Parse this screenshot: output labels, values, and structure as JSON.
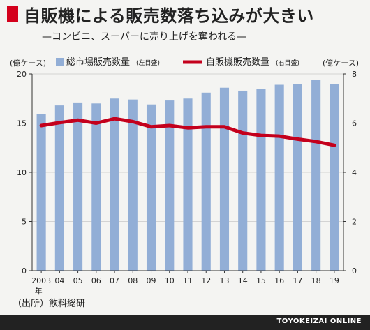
{
  "title": "自販機による販売数落ち込みが大きい",
  "subtitle": "—コンビニ、スーパーに売り上げを奪われる—",
  "source": "（出所）飲料総研",
  "footer": "TOYOKEIZAI ONLINE",
  "colors": {
    "bar": "#92aed6",
    "line": "#c4001c",
    "accent": "#d4001c",
    "axis": "#333333",
    "grid": "#ffffff"
  },
  "chart_data": {
    "type": "bar+line",
    "categories": [
      "2003",
      "04",
      "05",
      "06",
      "07",
      "08",
      "09",
      "10",
      "11",
      "12",
      "13",
      "14",
      "15",
      "16",
      "17",
      "18",
      "19"
    ],
    "x_suffix": "年",
    "series": [
      {
        "name": "総市場販売数量",
        "name_note": "(左目盛)",
        "type": "bar",
        "axis": "left",
        "values": [
          15.9,
          16.8,
          17.1,
          17.0,
          17.5,
          17.4,
          16.9,
          17.3,
          17.5,
          18.1,
          18.6,
          18.3,
          18.5,
          18.9,
          19.0,
          19.4,
          19.0
        ]
      },
      {
        "name": "自販機販売数量",
        "name_note": "(右目盛)",
        "type": "line",
        "axis": "right",
        "values": [
          5.9,
          6.02,
          6.12,
          6.0,
          6.18,
          6.06,
          5.85,
          5.9,
          5.81,
          5.85,
          5.85,
          5.6,
          5.5,
          5.47,
          5.35,
          5.25,
          5.1
        ]
      }
    ],
    "left_axis": {
      "unit": "(億ケース)",
      "min": 0,
      "max": 20,
      "ticks": [
        0,
        5,
        10,
        15,
        20
      ]
    },
    "right_axis": {
      "unit": "(億ケース)",
      "min": 0,
      "max": 8,
      "ticks": [
        0,
        2,
        4,
        6,
        8
      ]
    },
    "grid": true,
    "legend_position": "top"
  }
}
